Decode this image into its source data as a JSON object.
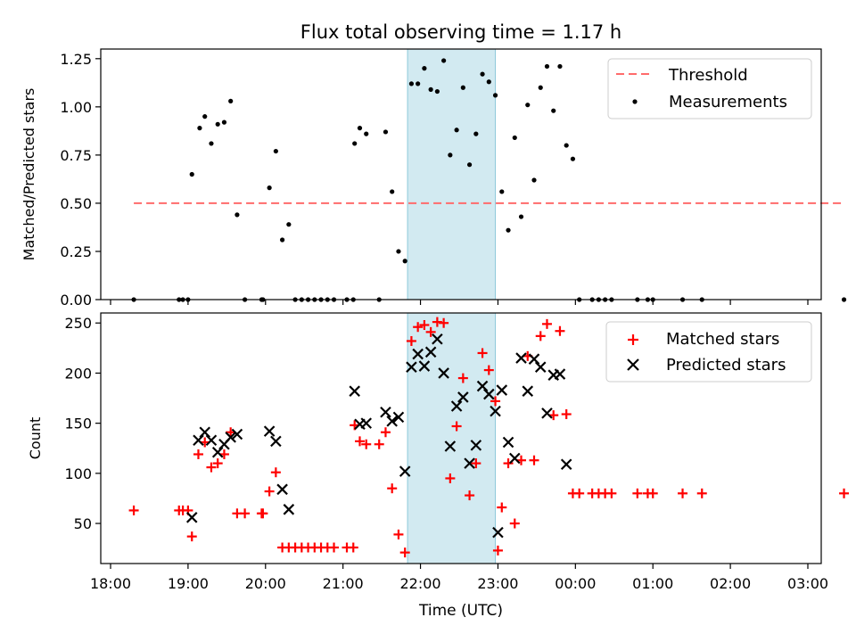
{
  "figure": {
    "title": "Flux total observing time = 1.17 h"
  },
  "chart_data": [
    {
      "type": "scatter",
      "title": "Flux total observing time = 1.17 h",
      "xlabel": "",
      "ylabel": "Matched/Predicted stars",
      "xlim": [
        "18:00",
        "03:00"
      ],
      "ylim": [
        0,
        1.3
      ],
      "yticks": [
        0,
        0.25,
        0.5,
        0.75,
        1.0,
        1.25
      ],
      "ytick_labels": [
        "0.00",
        "0.25",
        "0.50",
        "0.75",
        "1.00",
        "1.25"
      ],
      "shaded_span": [
        "21:50",
        "22:58"
      ],
      "legend": {
        "position": "upper right",
        "entries": [
          "Threshold",
          "Measurements"
        ]
      },
      "threshold": {
        "name": "Threshold",
        "value": 0.5,
        "x_range": [
          "18:18",
          "27:28"
        ],
        "color": "#ff6b6b",
        "style": "dashed"
      },
      "series": [
        {
          "name": "Measurements",
          "color": "#000000",
          "marker": "dot",
          "points": [
            [
              "18:18",
              0
            ],
            [
              "18:53",
              0
            ],
            [
              "18:56",
              0
            ],
            [
              "19:00",
              0
            ],
            [
              "19:03",
              0.65
            ],
            [
              "19:09",
              0.89
            ],
            [
              "19:13",
              0.95
            ],
            [
              "19:18",
              0.81
            ],
            [
              "19:23",
              0.91
            ],
            [
              "19:28",
              0.92
            ],
            [
              "19:33",
              1.03
            ],
            [
              "19:38",
              0.44
            ],
            [
              "19:44",
              0
            ],
            [
              "19:57",
              0
            ],
            [
              "19:58",
              0
            ],
            [
              "20:03",
              0.58
            ],
            [
              "20:08",
              0.77
            ],
            [
              "20:13",
              0.31
            ],
            [
              "20:18",
              0.39
            ],
            [
              "20:23",
              0
            ],
            [
              "20:28",
              0
            ],
            [
              "20:33",
              0
            ],
            [
              "20:38",
              0
            ],
            [
              "20:43",
              0
            ],
            [
              "20:48",
              0
            ],
            [
              "20:53",
              0
            ],
            [
              "21:03",
              0
            ],
            [
              "21:08",
              0
            ],
            [
              "21:09",
              0.81
            ],
            [
              "21:13",
              0.89
            ],
            [
              "21:18",
              0.86
            ],
            [
              "21:28",
              0
            ],
            [
              "21:33",
              0.87
            ],
            [
              "21:38",
              0.56
            ],
            [
              "21:43",
              0.25
            ],
            [
              "21:48",
              0.2
            ],
            [
              "21:53",
              1.12
            ],
            [
              "21:58",
              1.12
            ],
            [
              "22:03",
              1.2
            ],
            [
              "22:08",
              1.09
            ],
            [
              "22:13",
              1.08
            ],
            [
              "22:18",
              1.24
            ],
            [
              "22:23",
              0.75
            ],
            [
              "22:28",
              0.88
            ],
            [
              "22:33",
              1.1
            ],
            [
              "22:38",
              0.7
            ],
            [
              "22:43",
              0.86
            ],
            [
              "22:48",
              1.17
            ],
            [
              "22:53",
              1.13
            ],
            [
              "22:58",
              1.06
            ],
            [
              "23:03",
              0.56
            ],
            [
              "23:08",
              0.36
            ],
            [
              "23:13",
              0.84
            ],
            [
              "23:18",
              0.43
            ],
            [
              "23:23",
              1.01
            ],
            [
              "23:28",
              0.62
            ],
            [
              "23:33",
              1.1
            ],
            [
              "23:38",
              1.21
            ],
            [
              "23:43",
              0.98
            ],
            [
              "23:48",
              1.21
            ],
            [
              "23:53",
              0.8
            ],
            [
              "23:58",
              0.73
            ],
            [
              "24:03",
              0
            ],
            [
              "24:13",
              0
            ],
            [
              "24:18",
              0
            ],
            [
              "24:23",
              0
            ],
            [
              "24:28",
              0
            ],
            [
              "24:48",
              0
            ],
            [
              "24:56",
              0
            ],
            [
              "25:00",
              0
            ],
            [
              "25:23",
              0
            ],
            [
              "25:38",
              0
            ],
            [
              "27:28",
              0
            ]
          ]
        }
      ]
    },
    {
      "type": "scatter",
      "title": "",
      "xlabel": "Time (UTC)",
      "ylabel": "Count",
      "xlim": [
        "18:00",
        "03:00"
      ],
      "xticks": [
        "18:00",
        "19:00",
        "20:00",
        "21:00",
        "22:00",
        "23:00",
        "00:00",
        "01:00",
        "02:00",
        "03:00"
      ],
      "ylim": [
        10,
        260
      ],
      "yticks": [
        50,
        100,
        150,
        200,
        250
      ],
      "ytick_labels": [
        "50",
        "100",
        "150",
        "200",
        "250"
      ],
      "shaded_span": [
        "21:50",
        "22:58"
      ],
      "legend": {
        "position": "upper right",
        "entries": [
          "Matched stars",
          "Predicted stars"
        ]
      },
      "series": [
        {
          "name": "Matched stars",
          "color": "#ff0000",
          "marker": "plus",
          "points": [
            [
              "18:18",
              63
            ],
            [
              "18:53",
              63
            ],
            [
              "18:56",
              63
            ],
            [
              "19:00",
              63
            ],
            [
              "19:03",
              37
            ],
            [
              "19:08",
              119
            ],
            [
              "19:13",
              131
            ],
            [
              "19:18",
              106
            ],
            [
              "19:23",
              110
            ],
            [
              "19:28",
              119
            ],
            [
              "19:33",
              141
            ],
            [
              "19:38",
              60
            ],
            [
              "19:44",
              60
            ],
            [
              "19:57",
              60
            ],
            [
              "19:58",
              60
            ],
            [
              "20:03",
              82
            ],
            [
              "20:08",
              101
            ],
            [
              "20:13",
              26
            ],
            [
              "20:18",
              26
            ],
            [
              "20:23",
              26
            ],
            [
              "20:28",
              26
            ],
            [
              "20:33",
              26
            ],
            [
              "20:38",
              26
            ],
            [
              "20:43",
              26
            ],
            [
              "20:48",
              26
            ],
            [
              "20:53",
              26
            ],
            [
              "21:03",
              26
            ],
            [
              "21:08",
              26
            ],
            [
              "21:09",
              148
            ],
            [
              "21:13",
              132
            ],
            [
              "21:18",
              129
            ],
            [
              "21:28",
              129
            ],
            [
              "21:33",
              141
            ],
            [
              "21:38",
              85
            ],
            [
              "21:43",
              39
            ],
            [
              "21:48",
              21
            ],
            [
              "21:53",
              232
            ],
            [
              "21:58",
              246
            ],
            [
              "22:03",
              248
            ],
            [
              "22:08",
              241
            ],
            [
              "22:13",
              251
            ],
            [
              "22:18",
              250
            ],
            [
              "22:23",
              95
            ],
            [
              "22:28",
              147
            ],
            [
              "22:33",
              195
            ],
            [
              "22:38",
              78
            ],
            [
              "22:43",
              110
            ],
            [
              "22:48",
              220
            ],
            [
              "22:53",
              203
            ],
            [
              "22:58",
              172
            ],
            [
              "23:00",
              23
            ],
            [
              "23:03",
              66
            ],
            [
              "23:08",
              110
            ],
            [
              "23:13",
              50
            ],
            [
              "23:18",
              113
            ],
            [
              "23:23",
              217
            ],
            [
              "23:28",
              113
            ],
            [
              "23:33",
              237
            ],
            [
              "23:38",
              249
            ],
            [
              "23:43",
              158
            ],
            [
              "23:48",
              242
            ],
            [
              "23:53",
              159
            ],
            [
              "23:58",
              80
            ],
            [
              "24:03",
              80
            ],
            [
              "24:13",
              80
            ],
            [
              "24:18",
              80
            ],
            [
              "24:23",
              80
            ],
            [
              "24:28",
              80
            ],
            [
              "24:48",
              80
            ],
            [
              "24:56",
              80
            ],
            [
              "25:00",
              80
            ],
            [
              "25:23",
              80
            ],
            [
              "25:38",
              80
            ],
            [
              "27:28",
              80
            ]
          ]
        },
        {
          "name": "Predicted stars",
          "color": "#000000",
          "marker": "x",
          "points": [
            [
              "19:03",
              56
            ],
            [
              "19:08",
              133
            ],
            [
              "19:13",
              141
            ],
            [
              "19:18",
              133
            ],
            [
              "19:23",
              121
            ],
            [
              "19:28",
              129
            ],
            [
              "19:33",
              136
            ],
            [
              "19:38",
              139
            ],
            [
              "20:03",
              142
            ],
            [
              "20:08",
              132
            ],
            [
              "20:13",
              84
            ],
            [
              "20:18",
              64
            ],
            [
              "21:09",
              182
            ],
            [
              "21:13",
              149
            ],
            [
              "21:18",
              150
            ],
            [
              "21:33",
              161
            ],
            [
              "21:38",
              152
            ],
            [
              "21:43",
              156
            ],
            [
              "21:48",
              102
            ],
            [
              "21:53",
              206
            ],
            [
              "21:58",
              219
            ],
            [
              "22:03",
              207
            ],
            [
              "22:08",
              221
            ],
            [
              "22:13",
              234
            ],
            [
              "22:18",
              200
            ],
            [
              "22:23",
              127
            ],
            [
              "22:28",
              167
            ],
            [
              "22:33",
              176
            ],
            [
              "22:38",
              110
            ],
            [
              "22:43",
              128
            ],
            [
              "22:48",
              187
            ],
            [
              "22:53",
              179
            ],
            [
              "22:58",
              162
            ],
            [
              "23:00",
              41
            ],
            [
              "23:03",
              183
            ],
            [
              "23:08",
              131
            ],
            [
              "23:13",
              115
            ],
            [
              "23:18",
              215
            ],
            [
              "23:23",
              182
            ],
            [
              "23:28",
              214
            ],
            [
              "23:33",
              206
            ],
            [
              "23:38",
              160
            ],
            [
              "23:43",
              198
            ],
            [
              "23:48",
              199
            ],
            [
              "23:53",
              109
            ]
          ]
        }
      ]
    }
  ]
}
